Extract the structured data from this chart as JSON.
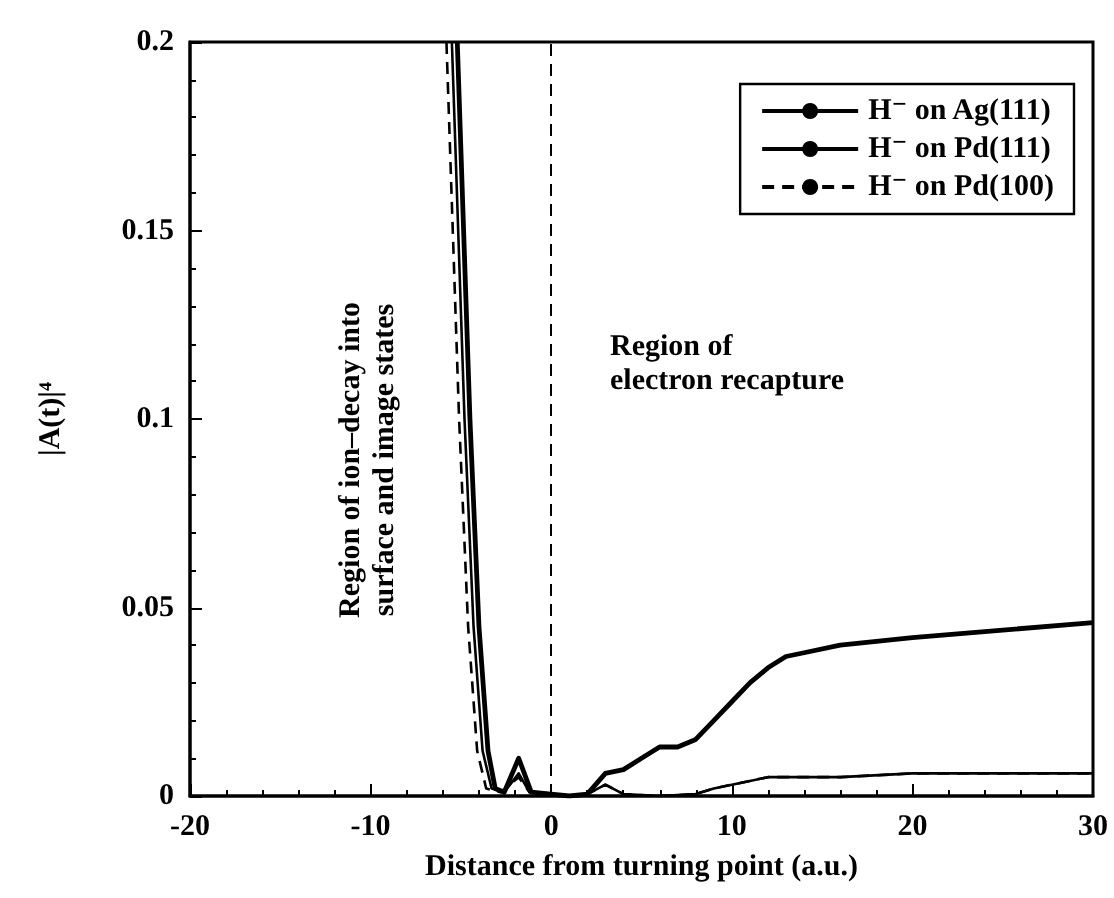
{
  "chart_data": {
    "type": "line",
    "xlabel": "Distance from turning point (a.u.)",
    "ylabel": "|A(t)|⁴",
    "xlim": [
      -20,
      30
    ],
    "xticks": [
      -20,
      -10,
      0,
      10,
      20,
      30
    ],
    "ylim": [
      0,
      0.2
    ],
    "yticks": [
      0,
      0.05,
      0.1,
      0.15,
      0.2
    ],
    "grid": false,
    "legend": "top right",
    "marker": "none",
    "ref_lines": [
      {
        "axis": "x",
        "value": 0,
        "line_style": "dashed",
        "color": "#000000"
      }
    ],
    "annotations": [
      "Region of ion–decay into surface and image states",
      "Region of electron recapture"
    ],
    "series": [
      {
        "name": "H⁻ on Ag(111)",
        "color": "#000000",
        "line_style": "solid",
        "x": [
          -5.2,
          -4.5,
          -4,
          -3.5,
          -3.1,
          -2.6,
          -1.8,
          -1.1,
          0,
          1,
          2,
          3,
          4,
          5,
          6,
          7,
          8,
          9,
          10,
          11,
          12,
          13,
          14,
          16,
          20,
          25,
          30
        ],
        "values": [
          0.2,
          0.1,
          0.045,
          0.012,
          0.002,
          0.001,
          0.01,
          0.001,
          0.0005,
          0,
          0.0005,
          0.006,
          0.007,
          0.01,
          0.013,
          0.013,
          0.015,
          0.02,
          0.025,
          0.03,
          0.034,
          0.037,
          0.038,
          0.04,
          0.042,
          0.044,
          0.046
        ]
      },
      {
        "name": "H⁻ on Pd(111)",
        "color": "#000000",
        "line_style": "solid",
        "x": [
          -5.5,
          -4.8,
          -4.3,
          -3.8,
          -3.3,
          -2.6,
          -1.8,
          -1.2,
          0,
          1,
          2,
          3,
          4,
          6,
          8,
          9,
          10,
          11,
          12,
          13,
          16,
          20,
          25,
          30
        ],
        "values": [
          0.2,
          0.1,
          0.045,
          0.012,
          0.002,
          0.001,
          0.006,
          0.001,
          0.0005,
          0,
          0.0005,
          0.003,
          0.0005,
          0,
          0.0005,
          0.002,
          0.003,
          0.004,
          0.005,
          0.005,
          0.005,
          0.006,
          0.006,
          0.006
        ]
      },
      {
        "name": "H⁻ on Pd(100)",
        "color": "#000000",
        "line_style": "dashed",
        "x": [
          -5.8,
          -5.1,
          -4.6,
          -4.1,
          -3.6,
          -2.8,
          -1.8,
          -1.2,
          0,
          1,
          2,
          3,
          4,
          6,
          8,
          9,
          10,
          11,
          12,
          13,
          16,
          20,
          25,
          30
        ],
        "values": [
          0.2,
          0.1,
          0.045,
          0.012,
          0.002,
          0.001,
          0.005,
          0.001,
          0.0005,
          0,
          0.0005,
          0.003,
          0.0005,
          0,
          0.0005,
          0.002,
          0.003,
          0.004,
          0.005,
          0.005,
          0.005,
          0.006,
          0.006,
          0.006
        ]
      }
    ]
  }
}
